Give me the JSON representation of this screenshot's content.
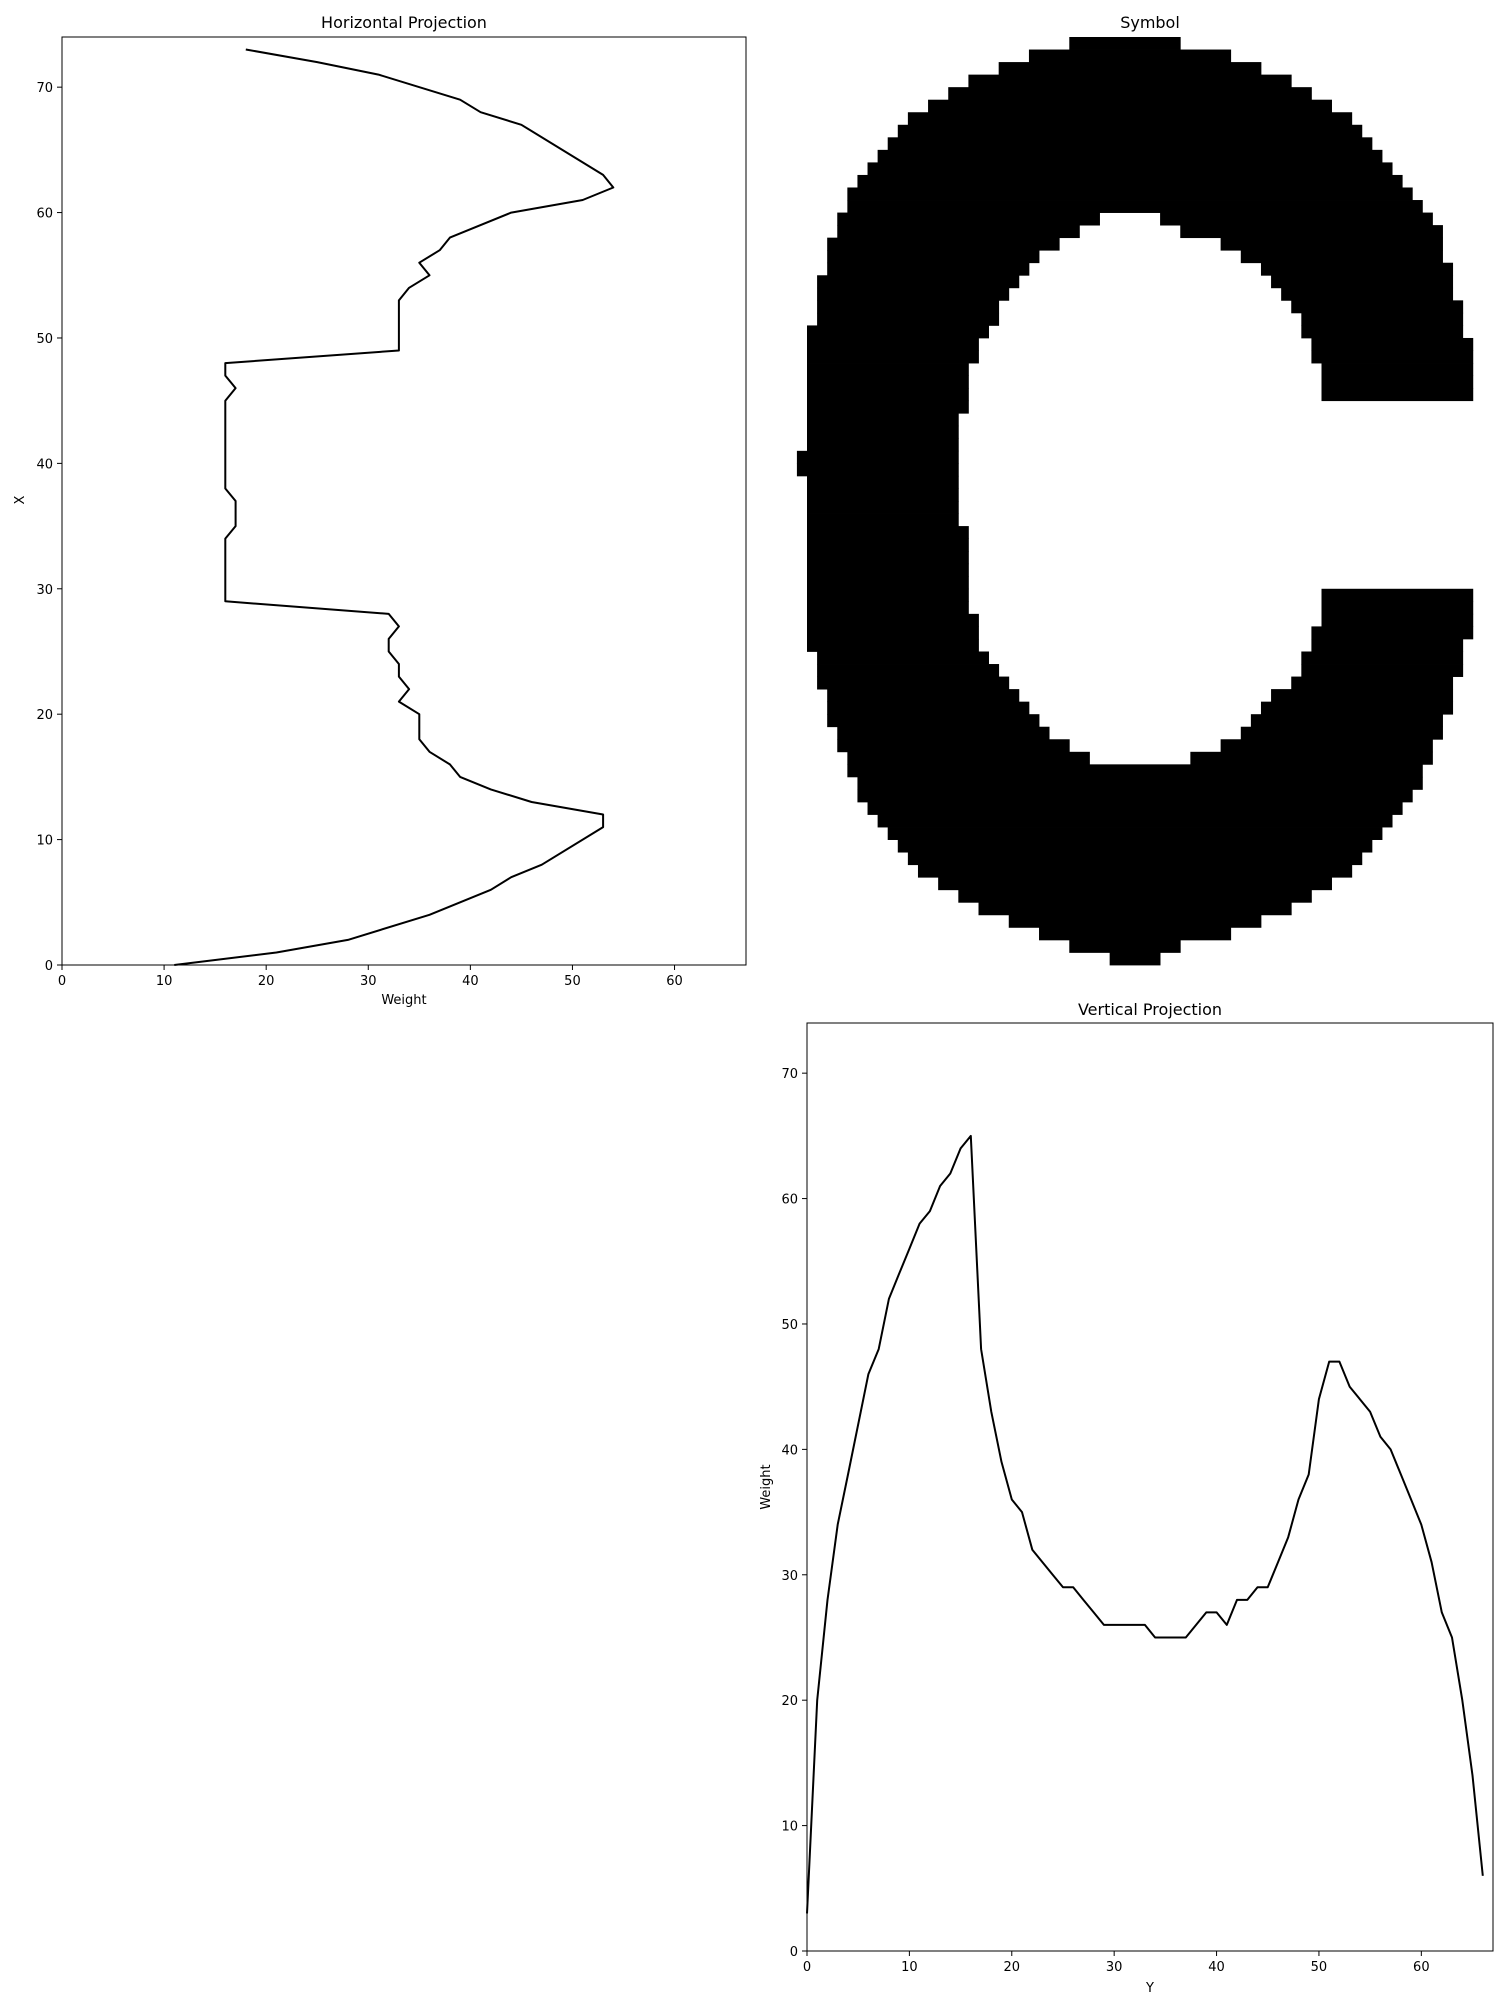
{
  "chart_data": [
    {
      "id": "horizontal",
      "type": "line",
      "title": "Horizontal Projection",
      "xlabel": "Weight",
      "ylabel": "X",
      "xlim": [
        0,
        67
      ],
      "ylim": [
        0,
        74
      ],
      "xticks": [
        "0",
        "10",
        "20",
        "30",
        "40",
        "50",
        "60"
      ],
      "yticks": [
        "0",
        "10",
        "20",
        "30",
        "40",
        "50",
        "60",
        "70"
      ],
      "grid": false,
      "series": [
        {
          "color": "#000000",
          "points": [
            [
              11,
              0
            ],
            [
              21,
              1
            ],
            [
              28,
              2
            ],
            [
              36,
              4
            ],
            [
              42,
              6
            ],
            [
              44,
              7
            ],
            [
              47,
              8
            ],
            [
              53,
              11
            ],
            [
              53,
              12
            ],
            [
              46,
              13
            ],
            [
              42,
              14
            ],
            [
              39,
              15
            ],
            [
              38,
              16
            ],
            [
              36,
              17
            ],
            [
              35,
              18
            ],
            [
              35,
              20
            ],
            [
              33,
              21
            ],
            [
              34,
              22
            ],
            [
              33,
              23
            ],
            [
              33,
              24
            ],
            [
              32,
              25
            ],
            [
              32,
              26
            ],
            [
              33,
              27
            ],
            [
              32,
              28
            ],
            [
              16,
              29
            ],
            [
              16,
              34
            ],
            [
              17,
              35
            ],
            [
              17,
              37
            ],
            [
              16,
              38
            ],
            [
              16,
              45
            ],
            [
              17,
              46
            ],
            [
              16,
              47
            ],
            [
              16,
              48
            ],
            [
              33,
              49
            ],
            [
              33,
              53
            ],
            [
              34,
              54
            ],
            [
              36,
              55
            ],
            [
              35,
              56
            ],
            [
              37,
              57
            ],
            [
              38,
              58
            ],
            [
              44,
              60
            ],
            [
              51,
              61
            ],
            [
              54,
              62
            ],
            [
              53,
              63
            ],
            [
              45,
              67
            ],
            [
              41,
              68
            ],
            [
              39,
              69
            ],
            [
              31,
              71
            ],
            [
              25,
              72
            ],
            [
              18,
              73
            ]
          ]
        }
      ]
    },
    {
      "id": "symbol",
      "type": "heatmap",
      "title": "Symbol",
      "colors": [
        "#ffffff",
        "#000000"
      ],
      "cols": 68,
      "rows": 74,
      "rects": [
        [
          26,
          0,
          37,
          1
        ],
        [
          22,
          1,
          42,
          2
        ],
        [
          19,
          2,
          45,
          3
        ],
        [
          16,
          3,
          48,
          4
        ],
        [
          14,
          4,
          50,
          5
        ],
        [
          12,
          5,
          52,
          6
        ],
        [
          10,
          6,
          54,
          7
        ],
        [
          9,
          7,
          55,
          8
        ],
        [
          8,
          8,
          56,
          9
        ],
        [
          7,
          9,
          57,
          10
        ],
        [
          6,
          10,
          58,
          11
        ],
        [
          5,
          11,
          59,
          12
        ],
        [
          4,
          12,
          60,
          13
        ],
        [
          4,
          13,
          61,
          14
        ],
        [
          3,
          14,
          29,
          15
        ],
        [
          35,
          14,
          62,
          15
        ],
        [
          3,
          15,
          27,
          16
        ],
        [
          37,
          15,
          63,
          16
        ],
        [
          2,
          16,
          25,
          17
        ],
        [
          41,
          16,
          63,
          17
        ],
        [
          2,
          17,
          23,
          18
        ],
        [
          43,
          17,
          63,
          18
        ],
        [
          2,
          18,
          22,
          19
        ],
        [
          45,
          18,
          64,
          19
        ],
        [
          1,
          19,
          21,
          20
        ],
        [
          46,
          19,
          64,
          20
        ],
        [
          1,
          20,
          20,
          21
        ],
        [
          47,
          20,
          64,
          21
        ],
        [
          1,
          21,
          19,
          22
        ],
        [
          48,
          21,
          65,
          22
        ],
        [
          1,
          22,
          19,
          23
        ],
        [
          49,
          22,
          65,
          23
        ],
        [
          0,
          23,
          18,
          24
        ],
        [
          49,
          23,
          65,
          24
        ],
        [
          0,
          24,
          17,
          25
        ],
        [
          50,
          24,
          66,
          25
        ],
        [
          0,
          25,
          17,
          26
        ],
        [
          50,
          25,
          66,
          26
        ],
        [
          0,
          26,
          16,
          27
        ],
        [
          51,
          26,
          66,
          27
        ],
        [
          0,
          27,
          16,
          28
        ],
        [
          51,
          27,
          66,
          28
        ],
        [
          0,
          28,
          16,
          29
        ],
        [
          51,
          28,
          66,
          29
        ],
        [
          0,
          29,
          16,
          30
        ],
        [
          0,
          30,
          15,
          31
        ],
        [
          0,
          31,
          15,
          32
        ],
        [
          0,
          32,
          15,
          33
        ],
        [
          -1,
          33,
          15,
          34
        ],
        [
          -1,
          34,
          15,
          35
        ],
        [
          0,
          35,
          15,
          36
        ],
        [
          0,
          36,
          15,
          37
        ],
        [
          0,
          37,
          15,
          38
        ],
        [
          0,
          38,
          15,
          39
        ],
        [
          0,
          39,
          16,
          40
        ],
        [
          0,
          40,
          16,
          41
        ],
        [
          0,
          41,
          16,
          42
        ],
        [
          0,
          42,
          16,
          43
        ],
        [
          0,
          43,
          16,
          44
        ],
        [
          0,
          44,
          16,
          45
        ],
        [
          51,
          44,
          66,
          45
        ],
        [
          0,
          45,
          16,
          46
        ],
        [
          51,
          45,
          66,
          46
        ],
        [
          0,
          46,
          17,
          47
        ],
        [
          51,
          46,
          66,
          47
        ],
        [
          0,
          47,
          17,
          48
        ],
        [
          50,
          47,
          66,
          48
        ],
        [
          0,
          48,
          17,
          49
        ],
        [
          50,
          48,
          65,
          49
        ],
        [
          1,
          49,
          18,
          50
        ],
        [
          49,
          49,
          65,
          50
        ],
        [
          1,
          50,
          19,
          51
        ],
        [
          49,
          50,
          65,
          51
        ],
        [
          1,
          51,
          20,
          52
        ],
        [
          48,
          51,
          64,
          52
        ],
        [
          2,
          52,
          21,
          53
        ],
        [
          46,
          52,
          64,
          53
        ],
        [
          2,
          53,
          22,
          54
        ],
        [
          45,
          53,
          64,
          54
        ],
        [
          2,
          54,
          23,
          55
        ],
        [
          44,
          54,
          63,
          55
        ],
        [
          3,
          55,
          24,
          56
        ],
        [
          43,
          55,
          63,
          56
        ],
        [
          3,
          56,
          26,
          57
        ],
        [
          41,
          56,
          62,
          57
        ],
        [
          4,
          57,
          28,
          58
        ],
        [
          38,
          57,
          62,
          58
        ],
        [
          4,
          58,
          61,
          59
        ],
        [
          5,
          59,
          61,
          60
        ],
        [
          5,
          60,
          60,
          61
        ],
        [
          6,
          61,
          59,
          62
        ],
        [
          7,
          62,
          58,
          63
        ],
        [
          8,
          63,
          57,
          64
        ],
        [
          9,
          64,
          56,
          65
        ],
        [
          10,
          65,
          55,
          66
        ],
        [
          11,
          66,
          54,
          67
        ],
        [
          13,
          67,
          52,
          68
        ],
        [
          15,
          68,
          50,
          69
        ],
        [
          17,
          69,
          48,
          70
        ],
        [
          20,
          70,
          45,
          71
        ],
        [
          23,
          71,
          42,
          72
        ],
        [
          26,
          72,
          37,
          73
        ],
        [
          30,
          73,
          35,
          74
        ]
      ]
    },
    {
      "id": "vertical",
      "type": "line",
      "title": "Vertical Projection",
      "xlabel": "Y",
      "ylabel": "Weight",
      "xlim": [
        0,
        67
      ],
      "ylim": [
        0,
        74
      ],
      "xticks": [
        "0",
        "10",
        "20",
        "30",
        "40",
        "50",
        "60"
      ],
      "yticks": [
        "0",
        "10",
        "20",
        "30",
        "40",
        "50",
        "60",
        "70"
      ],
      "grid": false,
      "series": [
        {
          "color": "#000000",
          "points": [
            [
              0,
              3
            ],
            [
              1,
              20
            ],
            [
              2,
              28
            ],
            [
              3,
              34
            ],
            [
              4,
              38
            ],
            [
              5,
              42
            ],
            [
              6,
              46
            ],
            [
              7,
              48
            ],
            [
              8,
              52
            ],
            [
              9,
              54
            ],
            [
              10,
              56
            ],
            [
              11,
              58
            ],
            [
              12,
              59
            ],
            [
              13,
              61
            ],
            [
              14,
              62
            ],
            [
              15,
              64
            ],
            [
              16,
              65
            ],
            [
              17,
              48
            ],
            [
              18,
              43
            ],
            [
              19,
              39
            ],
            [
              20,
              36
            ],
            [
              21,
              35
            ],
            [
              22,
              32
            ],
            [
              23,
              31
            ],
            [
              24,
              30
            ],
            [
              25,
              29
            ],
            [
              26,
              29
            ],
            [
              27,
              28
            ],
            [
              28,
              27
            ],
            [
              29,
              26
            ],
            [
              30,
              26
            ],
            [
              31,
              26
            ],
            [
              32,
              26
            ],
            [
              33,
              26
            ],
            [
              34,
              25
            ],
            [
              35,
              25
            ],
            [
              36,
              25
            ],
            [
              37,
              25
            ],
            [
              38,
              26
            ],
            [
              39,
              27
            ],
            [
              40,
              27
            ],
            [
              41,
              26
            ],
            [
              42,
              28
            ],
            [
              43,
              28
            ],
            [
              44,
              29
            ],
            [
              45,
              29
            ],
            [
              46,
              31
            ],
            [
              47,
              33
            ],
            [
              48,
              36
            ],
            [
              49,
              38
            ],
            [
              50,
              44
            ],
            [
              51,
              47
            ],
            [
              52,
              47
            ],
            [
              53,
              45
            ],
            [
              54,
              44
            ],
            [
              55,
              43
            ],
            [
              56,
              41
            ],
            [
              57,
              40
            ],
            [
              58,
              38
            ],
            [
              59,
              36
            ],
            [
              60,
              34
            ],
            [
              61,
              31
            ],
            [
              62,
              27
            ],
            [
              63,
              25
            ],
            [
              64,
              20
            ],
            [
              65,
              14
            ],
            [
              66,
              6
            ]
          ]
        }
      ]
    }
  ]
}
